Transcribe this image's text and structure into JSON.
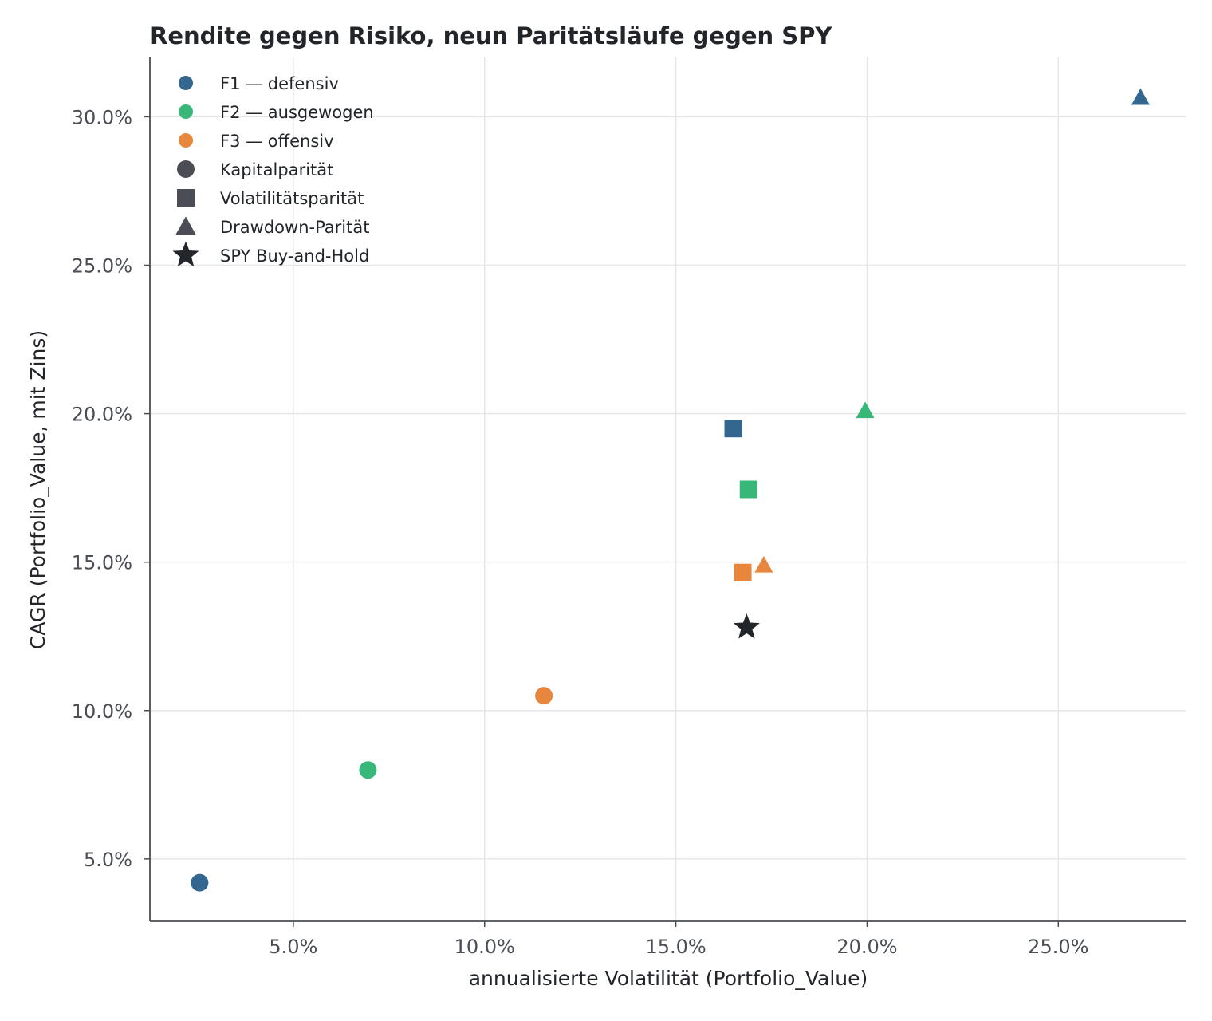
{
  "chart_data": {
    "type": "scatter",
    "title": "Rendite gegen Risiko, neun Paritätsläufe gegen SPY",
    "xlabel": "annualisierte Volatilität (Portfolio_Value)",
    "ylabel": "CAGR (Portfolio_Value, mit Zins)",
    "xlim": [
      0.0125,
      0.2835
    ],
    "ylim": [
      0.029,
      0.32
    ],
    "x_ticks": [
      {
        "value": 0.05,
        "label": "5.0%"
      },
      {
        "value": 0.1,
        "label": "10.0%"
      },
      {
        "value": 0.15,
        "label": "15.0%"
      },
      {
        "value": 0.2,
        "label": "20.0%"
      },
      {
        "value": 0.25,
        "label": "25.0%"
      }
    ],
    "y_ticks": [
      {
        "value": 0.05,
        "label": "5.0%"
      },
      {
        "value": 0.1,
        "label": "10.0%"
      },
      {
        "value": 0.15,
        "label": "15.0%"
      },
      {
        "value": 0.2,
        "label": "20.0%"
      },
      {
        "value": 0.25,
        "label": "25.0%"
      },
      {
        "value": 0.3,
        "label": "30.0%"
      }
    ],
    "grid": true,
    "legend_position": "top-left",
    "families": [
      {
        "key": "F1",
        "label": "F1 — defensiv",
        "color": "#33678f"
      },
      {
        "key": "F2",
        "label": "F2 — ausgewogen",
        "color": "#38b878"
      },
      {
        "key": "F3",
        "label": "F3 — offensiv",
        "color": "#e8863d"
      }
    ],
    "methods": [
      {
        "key": "capital",
        "label": "Kapitalparität",
        "marker": "circle"
      },
      {
        "key": "vol",
        "label": "Volatilitätsparität",
        "marker": "square"
      },
      {
        "key": "dd",
        "label": "Drawdown-Parität",
        "marker": "triangle"
      },
      {
        "key": "spy",
        "label": "SPY Buy-and-Hold",
        "marker": "star"
      }
    ],
    "neutral_marker_color": "#4a4d55",
    "spy_color": "#22252a",
    "points": [
      {
        "family": "F1",
        "method": "capital",
        "x": 0.0255,
        "y": 0.042
      },
      {
        "family": "F2",
        "method": "capital",
        "x": 0.0695,
        "y": 0.08
      },
      {
        "family": "F3",
        "method": "capital",
        "x": 0.1155,
        "y": 0.105
      },
      {
        "family": "F1",
        "method": "vol",
        "x": 0.165,
        "y": 0.195
      },
      {
        "family": "F2",
        "method": "vol",
        "x": 0.169,
        "y": 0.1745
      },
      {
        "family": "F3",
        "method": "vol",
        "x": 0.1675,
        "y": 0.1465
      },
      {
        "family": "F1",
        "method": "dd",
        "x": 0.2715,
        "y": 0.3065
      },
      {
        "family": "F2",
        "method": "dd",
        "x": 0.1995,
        "y": 0.201
      },
      {
        "family": "F3",
        "method": "dd",
        "x": 0.173,
        "y": 0.149
      },
      {
        "family": "SPY",
        "method": "spy",
        "x": 0.1685,
        "y": 0.128
      }
    ]
  }
}
